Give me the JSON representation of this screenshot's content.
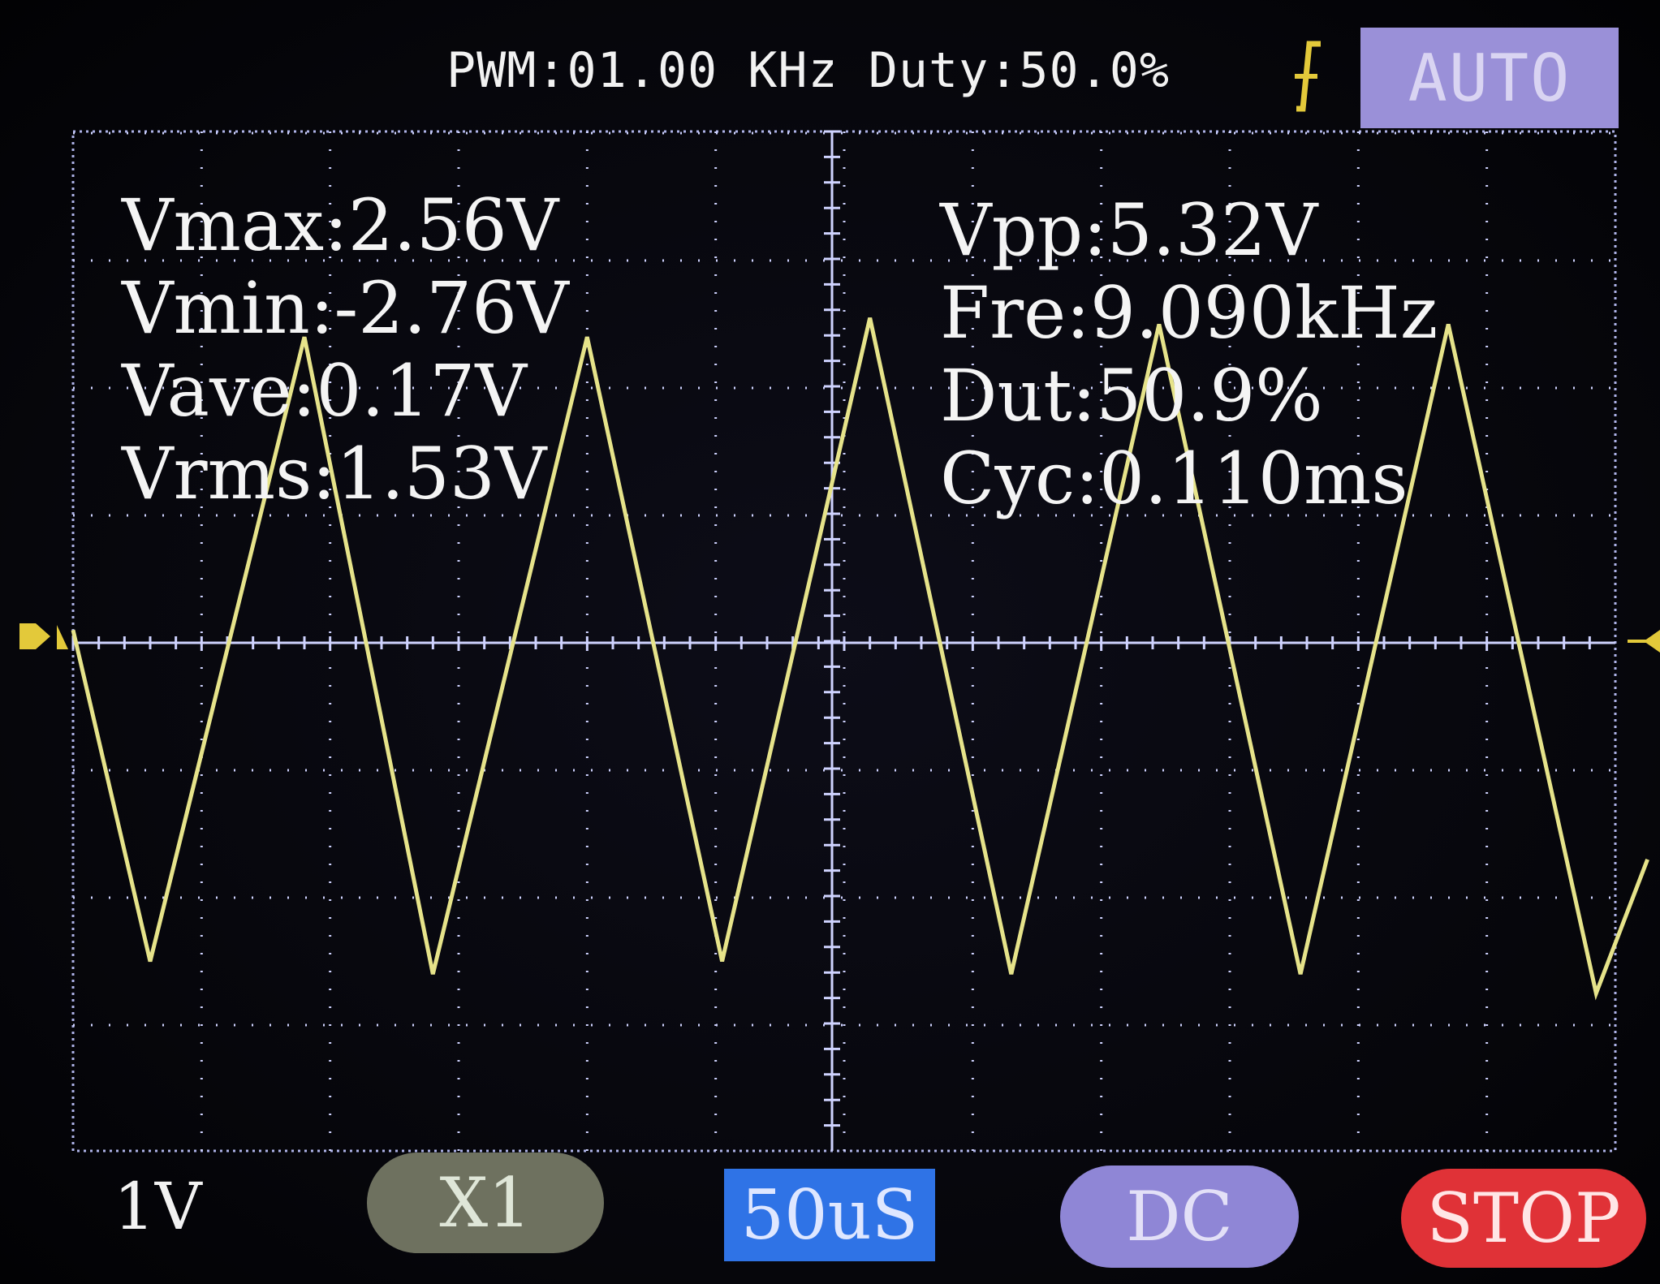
{
  "header": {
    "pwm_status": "PWM:01.00 KHz Duty:50.0%",
    "trigger_mode": "AUTO"
  },
  "measurements": {
    "vmax": "Vmax:2.56V",
    "vmin": "Vmin:-2.76V",
    "vave": "Vave:0.17V",
    "vrms": "Vrms:1.53V",
    "vpp": "Vpp:5.32V",
    "fre": "Fre:9.090kHz",
    "dut": "Dut:50.9%",
    "cyc": "Cyc:0.110ms"
  },
  "footer": {
    "volts_per_div": "1V",
    "probe": "X1",
    "timebase": "50uS",
    "coupling": "DC",
    "run_stop": "STOP"
  },
  "colors": {
    "trace": "#e6e38a",
    "grid": "#cfd3ff",
    "marker": "#e3c93a",
    "auto": "#9a90d8",
    "timebase": "#2f73e6",
    "coupling": "#8f86d6",
    "stop": "#e03237",
    "probe": "#6e715f"
  },
  "waveform": {
    "type": "triangle",
    "points_div": [
      [
        0.0,
        0.1
      ],
      [
        0.6,
        -2.5
      ],
      [
        1.8,
        2.4
      ],
      [
        2.8,
        -2.6
      ],
      [
        4.0,
        2.4
      ],
      [
        5.05,
        -2.5
      ],
      [
        6.2,
        2.55
      ],
      [
        7.3,
        -2.6
      ],
      [
        8.45,
        2.5
      ],
      [
        9.55,
        -2.6
      ],
      [
        10.7,
        2.5
      ],
      [
        11.85,
        -2.75
      ],
      [
        12.25,
        -1.7
      ]
    ]
  }
}
